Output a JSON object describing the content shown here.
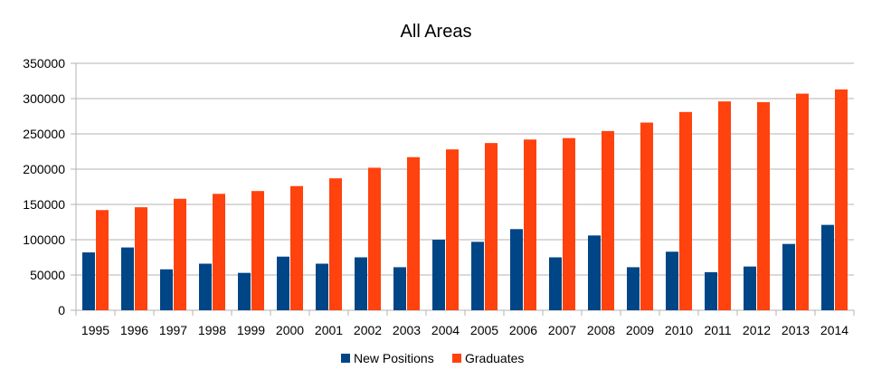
{
  "chart_data": {
    "type": "bar",
    "title": "All Areas",
    "xlabel": "",
    "ylabel": "",
    "ylim": [
      0,
      350000
    ],
    "yticks": [
      0,
      50000,
      100000,
      150000,
      200000,
      250000,
      300000,
      350000
    ],
    "grid": true,
    "legend_position": "bottom",
    "categories": [
      "1995",
      "1996",
      "1997",
      "1998",
      "1999",
      "2000",
      "2001",
      "2002",
      "2003",
      "2004",
      "2005",
      "2006",
      "2007",
      "2008",
      "2009",
      "2010",
      "2011",
      "2012",
      "2013",
      "2014"
    ],
    "series": [
      {
        "name": "New Positions",
        "color": "#004586",
        "values": [
          82000,
          89000,
          58000,
          66000,
          53000,
          76000,
          66000,
          75000,
          61000,
          100000,
          97000,
          115000,
          75000,
          106000,
          61000,
          83000,
          54000,
          62000,
          94000,
          121000
        ]
      },
      {
        "name": "Graduates",
        "color": "#ff420e",
        "values": [
          142000,
          146000,
          158000,
          165000,
          169000,
          176000,
          187000,
          202000,
          217000,
          228000,
          237000,
          242000,
          244000,
          254000,
          266000,
          281000,
          296000,
          295000,
          307000,
          313000
        ]
      }
    ]
  }
}
